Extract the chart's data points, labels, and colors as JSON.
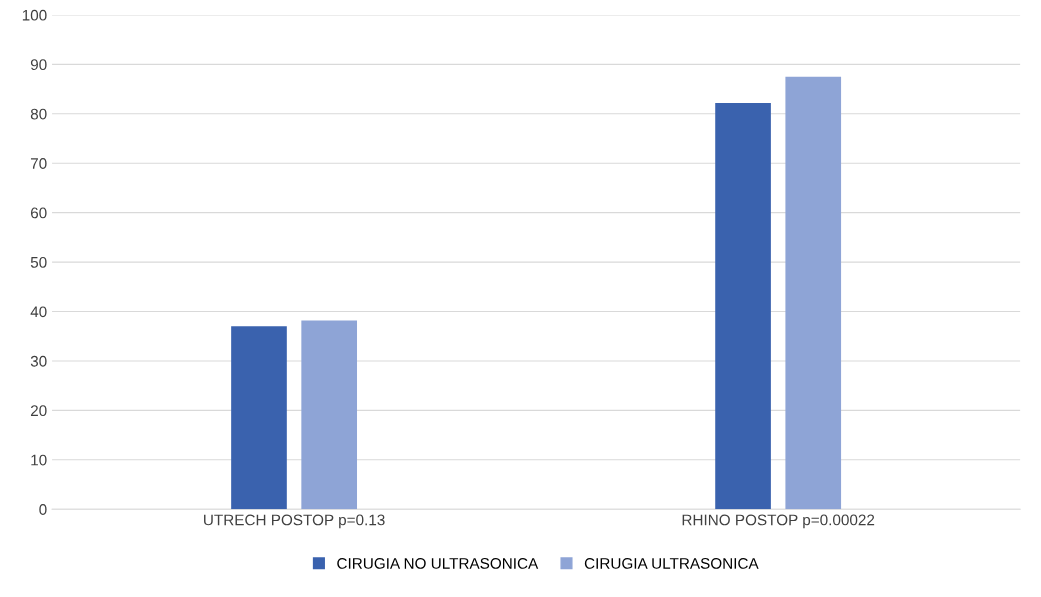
{
  "chart_data": {
    "type": "bar",
    "categories": [
      "UTRECH POSTOP p=0.13",
      "RHINO POSTOP p=0.00022"
    ],
    "series": [
      {
        "name": "CIRUGIA NO ULTRASONICA",
        "color": "#3a62ae",
        "values": [
          37,
          82.2
        ]
      },
      {
        "name": "CIRUGIA ULTRASONICA",
        "color": "#8ea4d6",
        "values": [
          38.2,
          87.5
        ]
      }
    ],
    "ylim": [
      0,
      100
    ],
    "yticks": [
      0,
      10,
      20,
      30,
      40,
      50,
      60,
      70,
      80,
      90,
      100
    ],
    "grid": "y",
    "legend": "bottom"
  }
}
